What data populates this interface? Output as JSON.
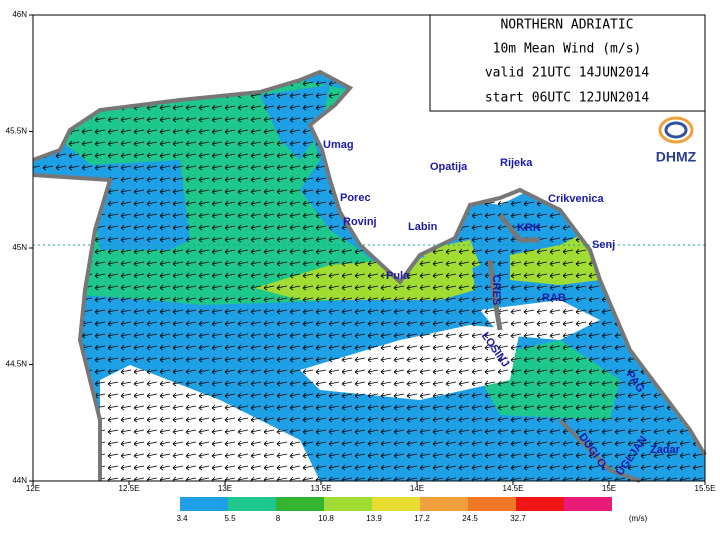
{
  "title_box": {
    "lines": [
      "NORTHERN ADRIATIC",
      "10m Mean Wind (m/s)",
      "valid 21UTC 14JUN2014",
      "start 06UTC 12JUN2014"
    ]
  },
  "logo": "DHMZ",
  "axes": {
    "lon_labels": [
      "12E",
      "12.5E",
      "13E",
      "13.5E",
      "14E",
      "14.5E",
      "15E",
      "15.5E"
    ],
    "lat_labels": [
      "46N",
      "45.5N",
      "45N",
      "44.5N",
      "44N"
    ]
  },
  "places": [
    "Umag",
    "Porec",
    "Rovinj",
    "Pula",
    "Labin",
    "Opatija",
    "Rijeka",
    "Crikvenica",
    "KRK",
    "Senj",
    "CRES",
    "RAB",
    "LOSINJ",
    "PAG",
    "Zadar",
    "DUGI O.",
    "UGLJAN"
  ],
  "colorbar": {
    "labels": [
      "3.4",
      "5.5",
      "8",
      "10.8",
      "13.9",
      "17.2",
      "24.5",
      "32.7"
    ],
    "unit": "(m/s)",
    "colors": [
      "#1ea0e6",
      "#1ec88c",
      "#32b432",
      "#a0dc32",
      "#e6dc32",
      "#f0a03c",
      "#f07828",
      "#f01414",
      "#e61e78"
    ]
  }
}
